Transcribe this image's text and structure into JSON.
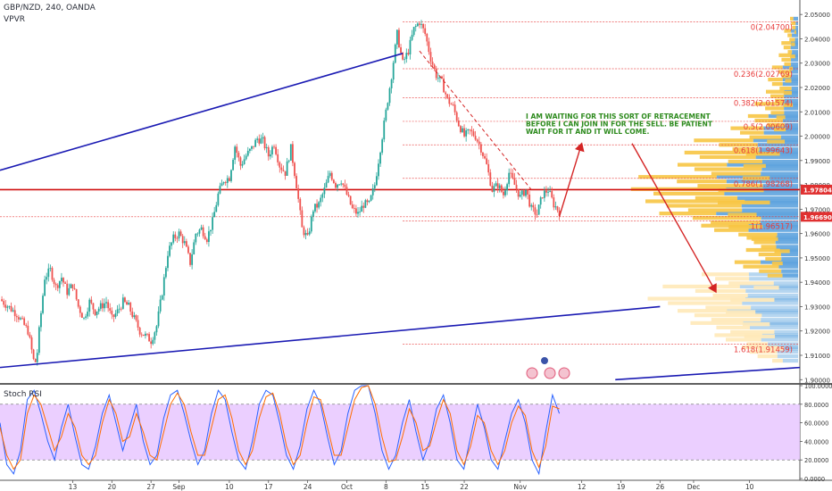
{
  "header": {
    "symbol": "GBP/NZD, 240, OANDA",
    "indicator": "VPVR"
  },
  "rsi_header": {
    "label": "Stoch RSI"
  },
  "annotation": "I AM WAITING FOR THIS SORT OF RETRACEMENT BEFORE I CAN JOIN IN FOR THE SELL. BE PATIENT WAIT FOR IT AND IT WILL COME.",
  "colors": {
    "up": "#26a69a",
    "down": "#ef5350",
    "trend": "#1a1ab3",
    "fib": "#e83c3c",
    "arrow": "#d42424",
    "annotation": "#2e8b1e",
    "rsi_band": "#e8c7ff",
    "vp_blue": "#5ea3de",
    "vp_yellow": "#f7c544",
    "vp_faint": "#ffe9b8"
  },
  "chart_data": [
    {
      "type": "candlestick",
      "title": "GBP/NZD, 240, OANDA",
      "ylim": [
        1.899,
        2.053
      ],
      "y_ticks": [
        "2.05000",
        "2.04000",
        "2.03000",
        "2.02000",
        "2.01000",
        "2.00000",
        "1.99000",
        "1.98000",
        "1.97000",
        "1.96000",
        "1.95000",
        "1.94000",
        "1.93000",
        "1.92000",
        "1.91000",
        "1.90000"
      ],
      "x_ticks": [
        "13",
        "20",
        "27",
        "Sep",
        "10",
        "17",
        "24",
        "Oct",
        "8",
        "15",
        "22",
        "Nov",
        "12",
        "19",
        "26",
        "Dec",
        "10"
      ],
      "x_tick_days": [
        13,
        20,
        27,
        32,
        41,
        48,
        55,
        62,
        69,
        76,
        83,
        93,
        104,
        111,
        118,
        124,
        134
      ],
      "x_range_days": [
        0,
        143
      ],
      "price_path": [
        [
          0,
          1.933
        ],
        [
          3,
          1.927
        ],
        [
          5,
          1.92
        ],
        [
          6,
          1.908
        ],
        [
          6.5,
          1.907
        ],
        [
          7,
          1.92
        ],
        [
          8,
          1.942
        ],
        [
          9,
          1.945
        ],
        [
          10,
          1.938
        ],
        [
          11,
          1.942
        ],
        [
          12,
          1.936
        ],
        [
          13,
          1.939
        ],
        [
          14,
          1.93
        ],
        [
          15,
          1.925
        ],
        [
          16,
          1.932
        ],
        [
          17,
          1.928
        ],
        [
          18,
          1.93
        ],
        [
          19,
          1.932
        ],
        [
          20,
          1.925
        ],
        [
          21,
          1.928
        ],
        [
          22,
          1.932
        ],
        [
          23,
          1.93
        ],
        [
          24,
          1.925
        ],
        [
          25,
          1.92
        ],
        [
          26,
          1.918
        ],
        [
          27,
          1.916
        ],
        [
          28,
          1.922
        ],
        [
          29,
          1.936
        ],
        [
          30,
          1.952
        ],
        [
          31,
          1.958
        ],
        [
          32,
          1.96
        ],
        [
          33,
          1.956
        ],
        [
          34,
          1.948
        ],
        [
          35,
          1.96
        ],
        [
          36,
          1.962
        ],
        [
          37,
          1.958
        ],
        [
          38,
          1.965
        ],
        [
          39,
          1.976
        ],
        [
          40,
          1.982
        ],
        [
          41,
          1.983
        ],
        [
          42,
          1.996
        ],
        [
          43,
          1.988
        ],
        [
          44,
          1.992
        ],
        [
          45,
          1.995
        ],
        [
          46,
          1.999
        ],
        [
          47,
          1.998
        ],
        [
          48,
          1.992
        ],
        [
          49,
          1.997
        ],
        [
          50,
          1.988
        ],
        [
          51,
          1.985
        ],
        [
          52,
          1.995
        ],
        [
          53,
          1.98
        ],
        [
          54,
          1.962
        ],
        [
          55,
          1.958
        ],
        [
          56,
          1.97
        ],
        [
          57,
          1.972
        ],
        [
          58,
          1.978
        ],
        [
          59,
          1.985
        ],
        [
          60,
          1.98
        ],
        [
          61,
          1.982
        ],
        [
          62,
          1.976
        ],
        [
          63,
          1.97
        ],
        [
          64,
          1.968
        ],
        [
          65,
          1.972
        ],
        [
          66,
          1.972
        ],
        [
          67,
          1.98
        ],
        [
          68,
          1.995
        ],
        [
          69,
          2.01
        ],
        [
          70,
          2.025
        ],
        [
          71,
          2.042
        ],
        [
          72,
          2.03
        ],
        [
          73,
          2.035
        ],
        [
          74,
          2.044
        ],
        [
          75,
          2.047
        ],
        [
          76,
          2.042
        ],
        [
          77,
          2.032
        ],
        [
          78,
          2.025
        ],
        [
          79,
          2.022
        ],
        [
          80,
          2.015
        ],
        [
          81,
          2.012
        ],
        [
          82,
          2.005
        ],
        [
          83,
          2.0
        ],
        [
          84,
          2.002
        ],
        [
          85,
          2.0
        ],
        [
          86,
          1.995
        ],
        [
          87,
          1.988
        ],
        [
          88,
          1.978
        ],
        [
          89,
          1.98
        ],
        [
          90,
          1.976
        ],
        [
          91,
          1.985
        ],
        [
          92,
          1.98
        ],
        [
          93,
          1.975
        ],
        [
          94,
          1.978
        ],
        [
          95,
          1.97
        ],
        [
          96,
          1.968
        ],
        [
          97,
          1.976
        ],
        [
          98,
          1.978
        ],
        [
          99,
          1.972
        ],
        [
          100,
          1.969
        ]
      ],
      "fib_levels": [
        {
          "label": "0(2.04700)",
          "value": 2.047
        },
        {
          "label": "0.236(2.02769)",
          "value": 2.02769
        },
        {
          "label": "0.382(2.01574)",
          "value": 2.01574
        },
        {
          "label": "0.5(2.00609)",
          "value": 2.00609
        },
        {
          "label": "0.618(1.99643)",
          "value": 1.99643
        },
        {
          "label": "0.786(1.98268)",
          "value": 1.98268
        },
        {
          "label": "1(1.96517)",
          "value": 1.96517
        },
        {
          "label": "1.618(1.91459)",
          "value": 1.91459
        }
      ],
      "price_labels": [
        {
          "label": "1.97804",
          "value": 1.97804
        },
        {
          "label": "1.96690",
          "value": 1.9669
        }
      ],
      "trendlines": [
        {
          "from": [
            0,
            1.986
          ],
          "to": [
            72,
            2.034
          ]
        },
        {
          "from": [
            0,
            1.905
          ],
          "to": [
            118,
            1.93
          ]
        },
        {
          "from": [
            110,
            1.9
          ],
          "to": [
            143,
            1.905
          ]
        }
      ],
      "projection": [
        [
          100,
          1.967
        ],
        [
          104,
          1.997
        ],
        [
          113,
          1.997
        ],
        [
          128,
          1.936
        ]
      ],
      "dashed_trend": {
        "from": [
          75,
          2.035
        ],
        "to": [
          95,
          1.978
        ]
      },
      "volume_profile": {
        "levels": [
          1.91,
          1.915,
          1.92,
          1.925,
          1.93,
          1.935,
          1.94,
          1.945,
          1.95,
          1.955,
          1.96,
          1.965,
          1.97,
          1.975,
          1.98,
          1.985,
          1.99,
          1.995,
          2.0,
          2.005,
          2.01,
          2.015,
          2.02,
          2.025,
          2.03,
          2.035,
          2.04,
          2.045
        ],
        "volumes": [
          0.35,
          0.5,
          0.62,
          0.75,
          0.9,
          0.78,
          0.6,
          0.38,
          0.3,
          0.32,
          0.58,
          0.8,
          0.95,
          1.0,
          0.92,
          0.75,
          0.68,
          0.6,
          0.42,
          0.3,
          0.25,
          0.2,
          0.18,
          0.15,
          0.12,
          0.1,
          0.08,
          0.05
        ]
      }
    },
    {
      "type": "line",
      "title": "Stoch RSI",
      "ylim": [
        0,
        100
      ],
      "y_ticks": [
        "100.0000",
        "80.0000",
        "60.0000",
        "40.0000",
        "20.0000",
        "0.0000"
      ],
      "band": [
        20,
        80
      ],
      "series": [
        {
          "values": [
            60,
            15,
            5,
            30,
            85,
            95,
            70,
            40,
            20,
            55,
            80,
            45,
            15,
            10,
            35,
            70,
            90,
            60,
            30,
            55,
            80,
            40,
            15,
            25,
            65,
            90,
            95,
            70,
            40,
            15,
            30,
            70,
            95,
            85,
            50,
            20,
            10,
            40,
            80,
            95,
            90,
            60,
            25,
            10,
            35,
            75,
            95,
            80,
            45,
            15,
            30,
            70,
            95,
            100,
            100,
            70,
            30,
            10,
            25,
            60,
            85,
            50,
            20,
            40,
            75,
            90,
            60,
            20,
            10,
            45,
            80,
            55,
            20,
            10,
            40,
            70,
            85,
            60,
            20,
            5,
            50,
            90,
            70
          ]
        },
        {
          "values": [
            55,
            25,
            10,
            20,
            70,
            90,
            80,
            55,
            30,
            45,
            70,
            55,
            25,
            15,
            25,
            60,
            85,
            70,
            40,
            45,
            70,
            50,
            25,
            20,
            50,
            80,
            92,
            80,
            50,
            25,
            25,
            55,
            85,
            90,
            65,
            30,
            15,
            30,
            65,
            88,
            92,
            70,
            35,
            15,
            25,
            60,
            88,
            85,
            55,
            25,
            25,
            55,
            85,
            98,
            100,
            80,
            45,
            18,
            20,
            45,
            75,
            60,
            30,
            35,
            62,
            85,
            70,
            30,
            15,
            35,
            68,
            60,
            30,
            15,
            30,
            60,
            78,
            68,
            30,
            12,
            35,
            78,
            75
          ]
        }
      ]
    }
  ]
}
